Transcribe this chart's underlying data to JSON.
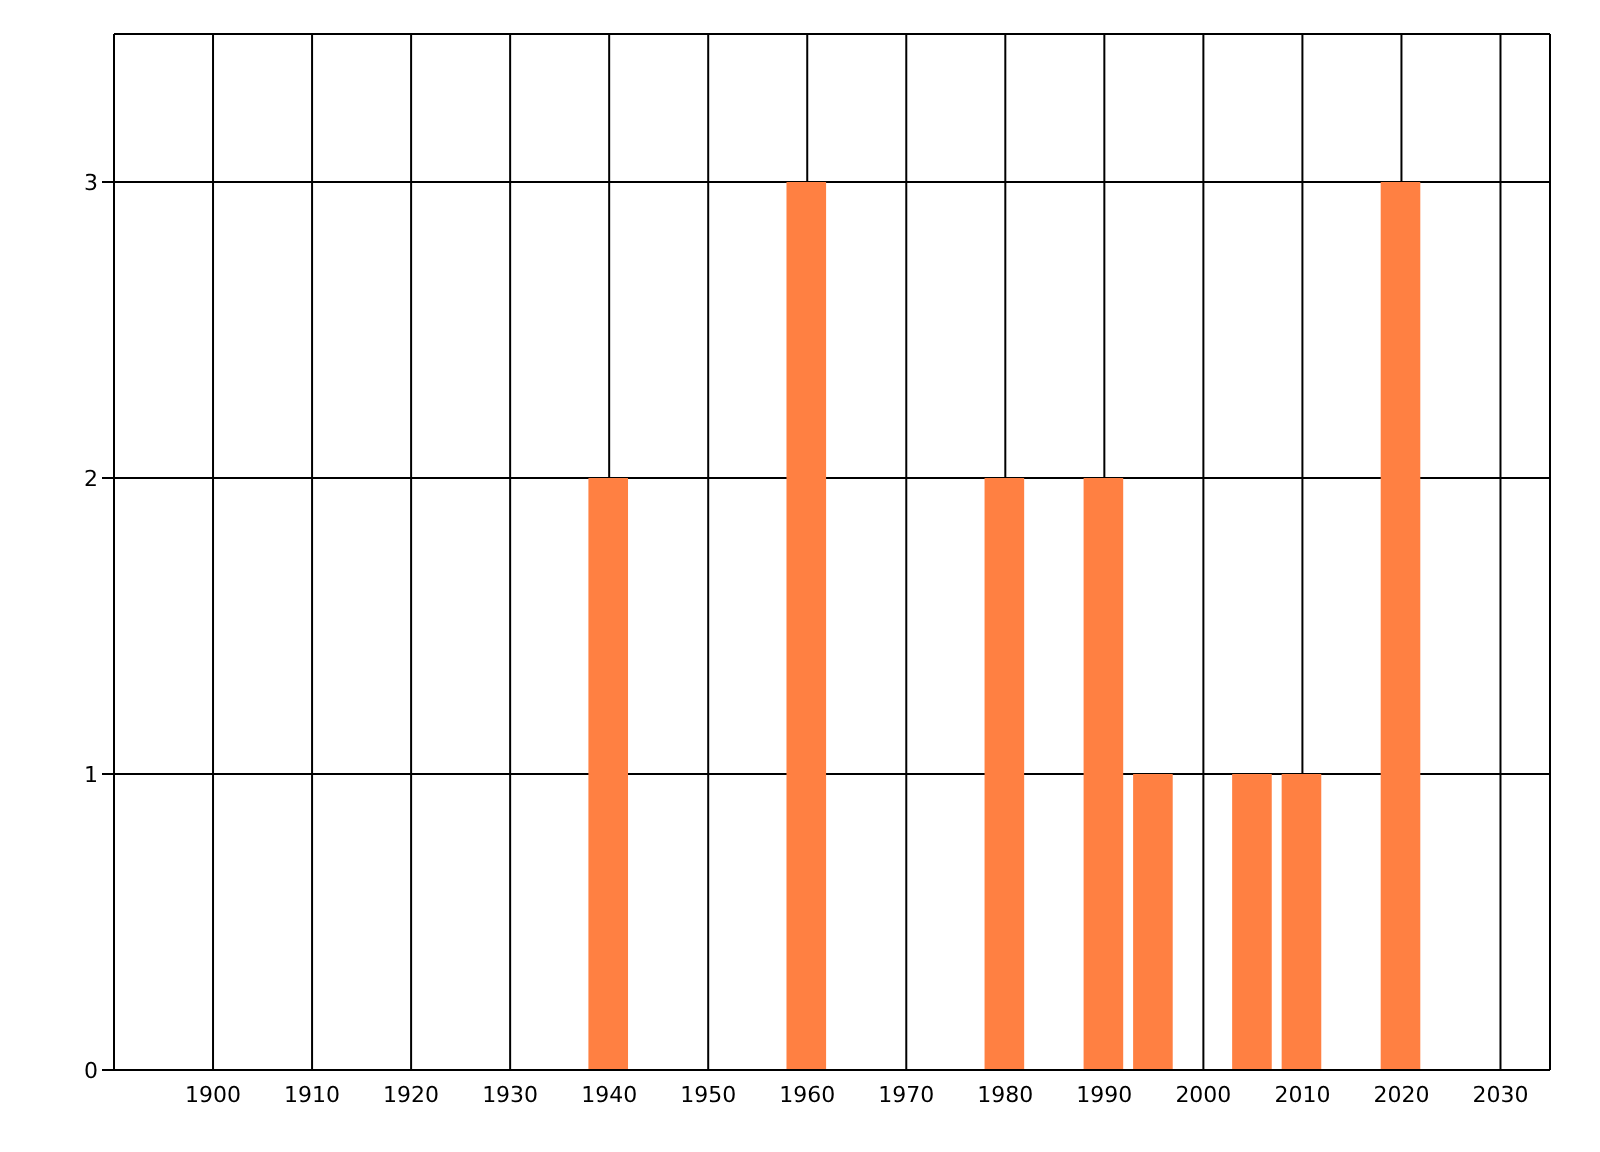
{
  "chart_data": {
    "type": "bar",
    "x": [
      1940,
      1960,
      1980,
      1990,
      1995,
      2005,
      2010,
      2020
    ],
    "values": [
      2,
      3,
      2,
      2,
      1,
      1,
      1,
      3
    ],
    "color": "#ff8042",
    "xlim": [
      1890,
      2035
    ],
    "xticks": [
      1900,
      1910,
      1920,
      1930,
      1940,
      1950,
      1960,
      1970,
      1980,
      1990,
      2000,
      2010,
      2020,
      2030
    ],
    "ylim": [
      0,
      3.5
    ],
    "yticks": [
      0,
      1,
      2,
      3
    ],
    "grid": true
  }
}
